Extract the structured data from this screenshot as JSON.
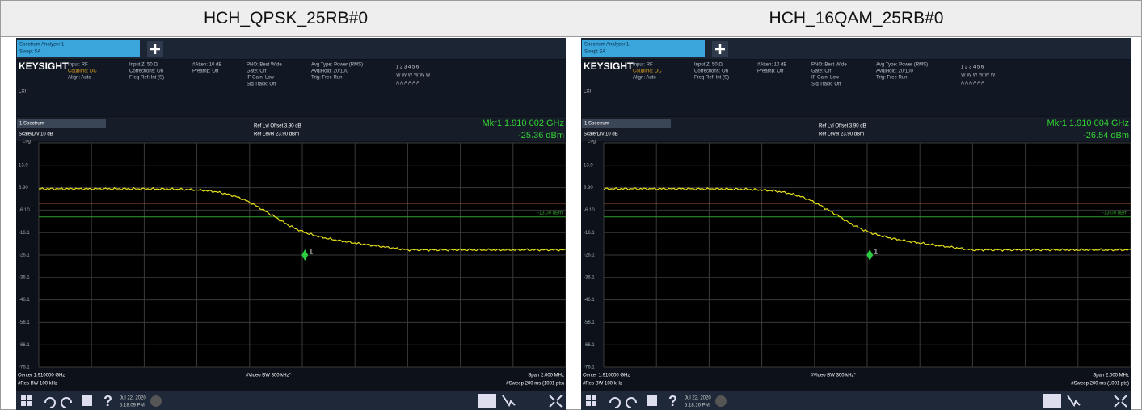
{
  "header": {
    "cells": [
      "HCH_QPSK_25RB#0",
      "HCH_16QAM_25RB#0"
    ]
  },
  "panels": [
    {
      "tab_title": "Spectrum Analyzer 1",
      "tab_subtitle": "Swept SA",
      "brand": "KEYSIGHT",
      "port": "LXI",
      "info": [
        [
          "Input: RF",
          "Coupling: DC",
          "Align: Auto"
        ],
        [
          "Input Z: 50 Ω",
          "Corrections: On",
          "Freq Ref: Int (S)"
        ],
        [
          "#Atten: 10 dB",
          "Preamp: Off"
        ],
        [
          "PNO: Best Wide",
          "Gate: Off",
          "IF Gain: Low",
          "Sig Track: Off"
        ],
        [
          "Avg Type: Power (RMS)",
          "Avg|Hold: 20/100",
          "Trig: Free Run"
        ]
      ],
      "traces": [
        "1 2 3 4 5 6",
        "W W W W W W",
        "A A A A A A"
      ],
      "window": "1 Spectrum",
      "scale": "Scale/Div 10 dB",
      "log": "Log",
      "ref_offset": "Ref Lvl Offset 3.90 dB",
      "ref_level": "Ref Level 23.90 dBm",
      "marker_freq": "Mkr1 1.910 002 GHz",
      "marker_level": "-25.36 dBm",
      "marker_number": "1",
      "y_labels": [
        "13.9",
        "3.90",
        "-6.10",
        "-16.1",
        "-26.1",
        "-36.1",
        "-46.1",
        "-56.1",
        "-66.1",
        "-76.1"
      ],
      "limit_label": "-13.00 dBm",
      "center": "Center 1.910000 GHz",
      "res_bw": "#Res BW 100 kHz",
      "video_bw": "#Video BW 300 kHz*",
      "span": "Span 2.000 MHz",
      "sweep": "#Sweep 200 ms (1001 pts)",
      "date": "Jul 22, 2020",
      "time": "5:18:09 PM"
    },
    {
      "tab_title": "Spectrum Analyzer 1",
      "tab_subtitle": "Swept SA",
      "brand": "KEYSIGHT",
      "port": "LXI",
      "info": [
        [
          "Input: RF",
          "Coupling: DC",
          "Align: Auto"
        ],
        [
          "Input Z: 50 Ω",
          "Corrections: On",
          "Freq Ref: Int (S)"
        ],
        [
          "#Atten: 10 dB",
          "Preamp: Off"
        ],
        [
          "PNO: Best Wide",
          "Gate: Off",
          "IF Gain: Low",
          "Sig Track: Off"
        ],
        [
          "Avg Type: Power (RMS)",
          "Avg|Hold: 20/100",
          "Trig: Free Run"
        ]
      ],
      "traces": [
        "1 2 3 4 5 6",
        "W W W W W W",
        "A A A A A A"
      ],
      "window": "1 Spectrum",
      "scale": "Scale/Div 10 dB",
      "log": "Log",
      "ref_offset": "Ref Lvl Offset 3.90 dB",
      "ref_level": "Ref Level 23.90 dBm",
      "marker_freq": "Mkr1 1.910 004 GHz",
      "marker_level": "-26.54 dBm",
      "marker_number": "1",
      "y_labels": [
        "13.9",
        "3.90",
        "-6.10",
        "-16.1",
        "-26.1",
        "-36.1",
        "-46.1",
        "-56.1",
        "-66.1",
        "-76.1"
      ],
      "limit_label": "-13.00 dBm",
      "center": "Center 1.910000 GHz",
      "res_bw": "#Res BW 100 kHz",
      "video_bw": "#Video BW 300 kHz*",
      "span": "Span 2.000 MHz",
      "sweep": "#Sweep 200 ms (1001 pts)",
      "date": "Jul 22, 2020",
      "time": "5:18:16 PM"
    }
  ]
}
